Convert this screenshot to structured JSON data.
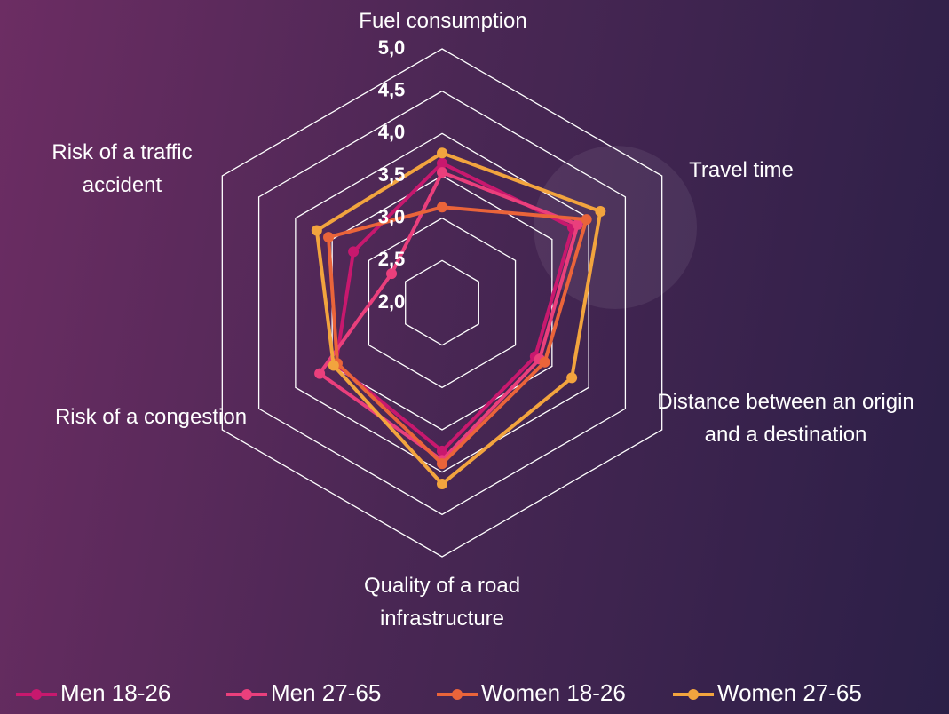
{
  "chart_data": {
    "type": "radar",
    "categories": [
      "Fuel consumption",
      "Travel time",
      "Distance between an origin and a destination",
      "Quality of a road infrastructure",
      "Risk of a congestion",
      "Risk of a traffic accident"
    ],
    "series": [
      {
        "name": "Men 18-26",
        "color": "#c8186e",
        "values": [
          3.65,
          3.78,
          3.27,
          3.75,
          3.45,
          3.21
        ]
      },
      {
        "name": "Men 27-65",
        "color": "#ea3f7c",
        "values": [
          3.54,
          3.85,
          3.33,
          3.86,
          3.67,
          2.69
        ]
      },
      {
        "name": "Women 18-26",
        "color": "#ea643a",
        "values": [
          3.13,
          3.97,
          3.4,
          3.9,
          3.43,
          3.55
        ]
      },
      {
        "name": "Women 27-65",
        "color": "#f2a43e",
        "values": [
          3.77,
          4.16,
          3.77,
          4.14,
          3.48,
          3.71
        ]
      }
    ],
    "ylim": [
      2,
      5
    ],
    "yticks": [
      {
        "value": 2,
        "label": "2,0"
      },
      {
        "value": 2.5,
        "label": "2,5"
      },
      {
        "value": 3,
        "label": "3,0"
      },
      {
        "value": 3.5,
        "label": "3,5"
      },
      {
        "value": 4,
        "label": "4,0"
      },
      {
        "value": 4.5,
        "label": "4,5"
      },
      {
        "value": 5,
        "label": "5,0"
      }
    ],
    "grid": true,
    "legend": "bottom"
  }
}
